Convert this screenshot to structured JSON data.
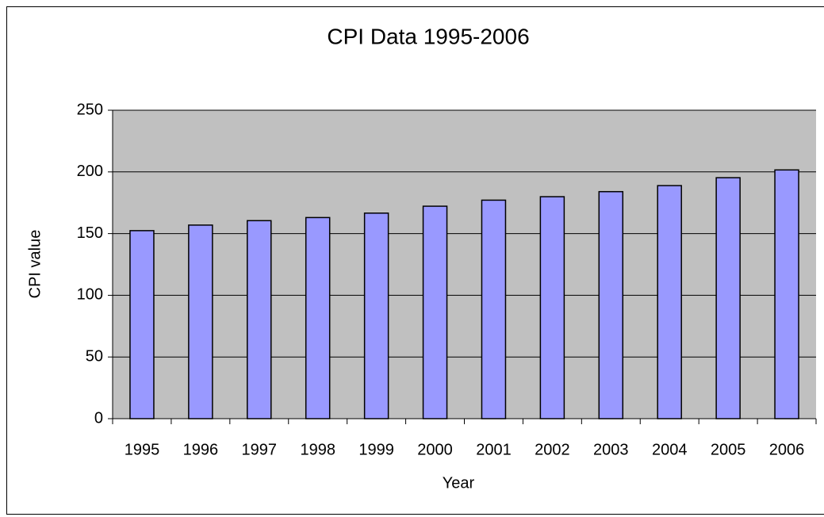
{
  "chart_data": {
    "type": "bar",
    "title": "CPI Data 1995-2006",
    "x_label": "Year",
    "y_label": "CPI value",
    "categories": [
      "1995",
      "1996",
      "1997",
      "1998",
      "1999",
      "2000",
      "2001",
      "2002",
      "2003",
      "2004",
      "2005",
      "2006"
    ],
    "values": [
      152.4,
      156.9,
      160.5,
      163.0,
      166.6,
      172.2,
      177.1,
      179.9,
      184.0,
      188.9,
      195.3,
      201.6
    ],
    "color": "#9999ff",
    "ylim": [
      0,
      250
    ],
    "yticks": [
      0,
      50,
      100,
      150,
      200,
      250
    ],
    "grid": true
  }
}
